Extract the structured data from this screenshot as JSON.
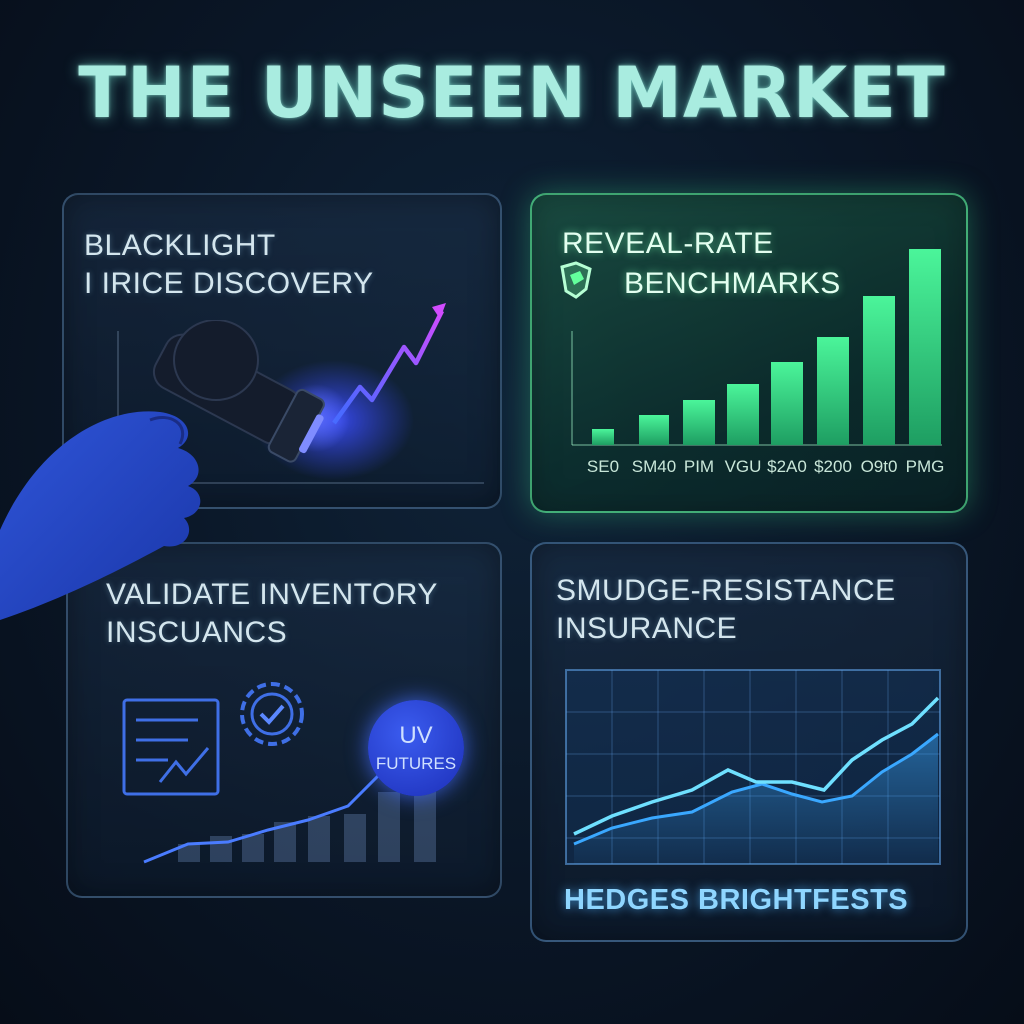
{
  "title": "THE UNSEEN MARKET",
  "panels": {
    "blacklight": {
      "line1": "BLACKLIGHT",
      "line2": "I IRICE DISCOVERY"
    },
    "reveal_rate": {
      "line1": "REVEAL-RATE",
      "line2": "BENCHMARKS",
      "tick_labels": [
        "SE0",
        "SM40",
        "PIM",
        "VGU",
        "$2A0",
        "$200",
        "O9t0",
        "PMG"
      ]
    },
    "inventory": {
      "line1": "VALIDATE INVENTORY",
      "line2": "INSCUANCS",
      "badge_line1": "UV",
      "badge_line2": "FUTURES"
    },
    "smudge": {
      "line1": "SMUDGE-RESISTANCE",
      "line2": "INSURANCE",
      "footer": "HEDGES BRIGHTFESTS"
    }
  },
  "colors": {
    "title": "#a9ece0",
    "green_bar": "#3fe08a",
    "uv_purple": "#c04cff",
    "uv_blue": "#2f5cff",
    "line_cyan": "#5fd8ff"
  },
  "icons": [
    "uv-flashlight-icon",
    "shield-icon",
    "checklist-icon",
    "gear-check-icon"
  ]
}
